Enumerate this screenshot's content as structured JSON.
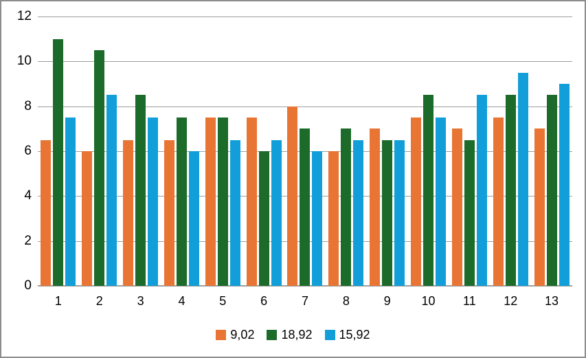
{
  "chart_data": {
    "type": "bar",
    "categories": [
      "1",
      "2",
      "3",
      "4",
      "5",
      "6",
      "7",
      "8",
      "9",
      "10",
      "11",
      "12",
      "13"
    ],
    "series": [
      {
        "name": "9,02",
        "color": "#E87533",
        "values": [
          6.5,
          6,
          6.5,
          6.5,
          7.5,
          7.5,
          8,
          6,
          7,
          7.5,
          7,
          7.5,
          7
        ]
      },
      {
        "name": "18,92",
        "color": "#1D6B2A",
        "values": [
          11,
          10.5,
          8.5,
          7.5,
          7.5,
          6,
          7,
          7,
          6.5,
          8.5,
          6.5,
          8.5,
          8.5
        ]
      },
      {
        "name": "15,92",
        "color": "#129FD9",
        "values": [
          7.5,
          8.5,
          7.5,
          6,
          6.5,
          6.5,
          6,
          6.5,
          6.5,
          7.5,
          8.5,
          9.5,
          9
        ]
      }
    ],
    "ylim": [
      0,
      12
    ],
    "yticks": [
      0,
      2,
      4,
      6,
      8,
      10,
      12
    ],
    "grid": true,
    "legend_position": "bottom"
  },
  "colors": {
    "grid": "#9E9E9E",
    "axis": "#9E9E9E",
    "text": "#000000",
    "background": "#FFFFFF",
    "frame_border": "#8C8C8C"
  }
}
